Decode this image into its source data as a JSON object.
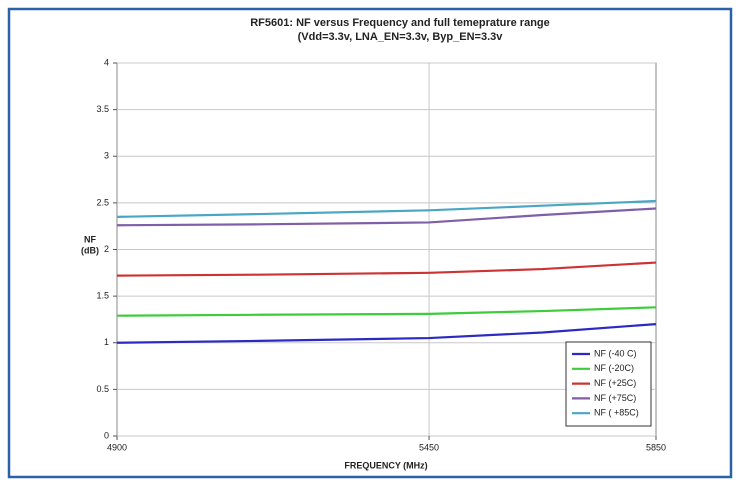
{
  "chart_data": {
    "type": "line",
    "title": "RF5601: NF versus Frequency and full temeprature range",
    "subtitle": "(Vdd=3.3v, LNA_EN=3.3v, Byp_EN=3.3v",
    "y_label": [
      "NF",
      "(dB)"
    ],
    "x_label": "FREQUENCY (MHz)",
    "x": [
      4900,
      5150,
      5450,
      5650,
      5850
    ],
    "series": [
      {
        "name": "NF (-40 C)",
        "color": "#2b2bc4",
        "values": [
          1.0,
          1.02,
          1.05,
          1.11,
          1.2
        ]
      },
      {
        "name": "NF (-20C)",
        "color": "#3ccc3c",
        "values": [
          1.29,
          1.3,
          1.31,
          1.34,
          1.38
        ]
      },
      {
        "name": "NF (+25C)",
        "color": "#cc3333",
        "values": [
          1.72,
          1.73,
          1.75,
          1.79,
          1.86
        ]
      },
      {
        "name": "NF (+75C)",
        "color": "#7f5fa8",
        "values": [
          2.26,
          2.27,
          2.29,
          2.37,
          2.44
        ]
      },
      {
        "name": "NF ( +85C)",
        "color": "#4aa6c4",
        "values": [
          2.35,
          2.38,
          2.42,
          2.47,
          2.52
        ]
      }
    ],
    "xlim": [
      4900,
      5850
    ],
    "xticks": [
      4900,
      5450,
      5850
    ],
    "x_grid": [
      5450
    ],
    "ylim": [
      0,
      4
    ],
    "yticks": [
      0,
      0.5,
      1,
      1.5,
      2,
      2.5,
      3,
      3.5,
      4
    ],
    "grid": true,
    "legend": "bottom-right"
  }
}
